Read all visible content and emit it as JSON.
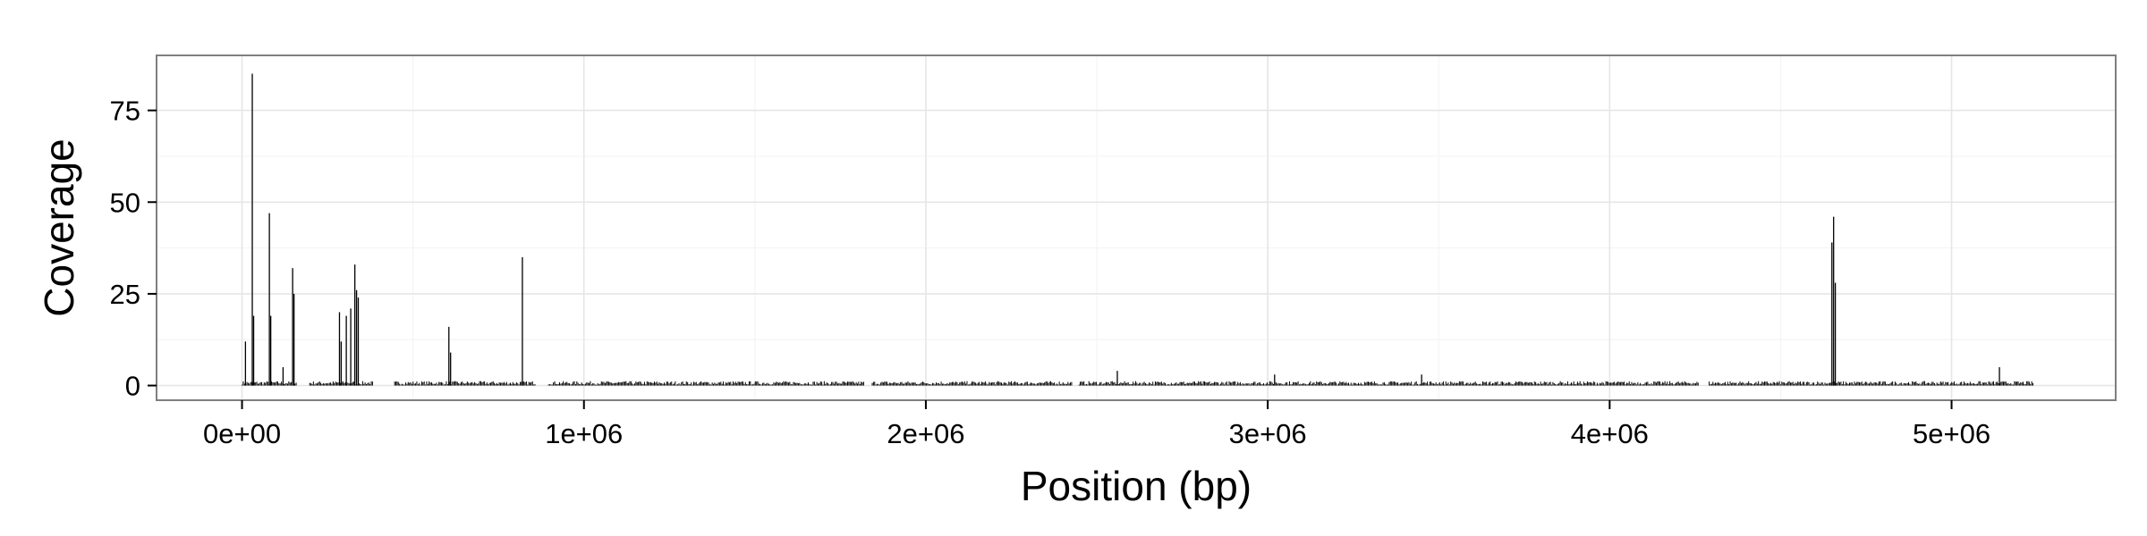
{
  "chart_data": {
    "type": "bar",
    "title": "",
    "xlabel": "Position (bp)",
    "ylabel": "Coverage",
    "xlim": [
      -250000,
      5480000
    ],
    "ylim": [
      -4,
      90
    ],
    "grid": true,
    "x_ticks": [
      {
        "value": 0,
        "label": "0e+00"
      },
      {
        "value": 1000000,
        "label": "1e+06"
      },
      {
        "value": 2000000,
        "label": "2e+06"
      },
      {
        "value": 3000000,
        "label": "3e+06"
      },
      {
        "value": 4000000,
        "label": "4e+06"
      },
      {
        "value": 5000000,
        "label": "5e+06"
      }
    ],
    "y_ticks": [
      {
        "value": 0,
        "label": "0"
      },
      {
        "value": 25,
        "label": "25"
      },
      {
        "value": 50,
        "label": "50"
      },
      {
        "value": 75,
        "label": "75"
      }
    ],
    "baseline_coverage": 0.6,
    "peaks": [
      {
        "x": 10000,
        "y": 12
      },
      {
        "x": 30000,
        "y": 85
      },
      {
        "x": 34000,
        "y": 19
      },
      {
        "x": 80000,
        "y": 47
      },
      {
        "x": 84000,
        "y": 19
      },
      {
        "x": 120000,
        "y": 5
      },
      {
        "x": 148000,
        "y": 32
      },
      {
        "x": 152000,
        "y": 25
      },
      {
        "x": 285000,
        "y": 20
      },
      {
        "x": 290000,
        "y": 12
      },
      {
        "x": 305000,
        "y": 19
      },
      {
        "x": 318000,
        "y": 21
      },
      {
        "x": 330000,
        "y": 33
      },
      {
        "x": 335000,
        "y": 26
      },
      {
        "x": 340000,
        "y": 24
      },
      {
        "x": 605000,
        "y": 16
      },
      {
        "x": 610000,
        "y": 9
      },
      {
        "x": 820000,
        "y": 35
      },
      {
        "x": 2560000,
        "y": 4
      },
      {
        "x": 3020000,
        "y": 3
      },
      {
        "x": 3450000,
        "y": 3
      },
      {
        "x": 4650000,
        "y": 39
      },
      {
        "x": 4655000,
        "y": 46
      },
      {
        "x": 4660000,
        "y": 28
      },
      {
        "x": 5140000,
        "y": 5
      }
    ],
    "gaps": [
      [
        160000,
        195000
      ],
      [
        385000,
        445000
      ],
      [
        860000,
        895000
      ],
      [
        1820000,
        1840000
      ],
      [
        2430000,
        2445000
      ],
      [
        4260000,
        4290000
      ]
    ]
  },
  "colors": {
    "panel_background": "#ffffff",
    "panel_border": "#7f7f7f",
    "grid_major": "#e6e6e6",
    "grid_minor": "#f4f4f4",
    "bars": "#000000",
    "axis_ticks": "#000000"
  }
}
